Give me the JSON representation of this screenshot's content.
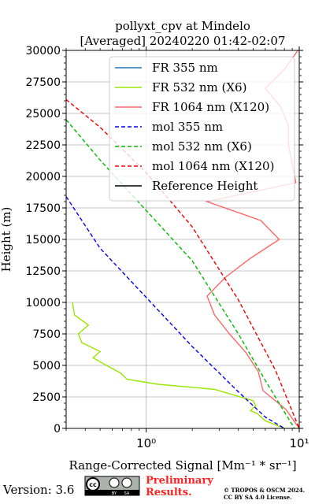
{
  "chart_data": {
    "type": "line",
    "title_line1": "pollyxt_cpv at Mindelo",
    "title_line2": "[Averaged] 20240220 01:42-02:07",
    "xlabel": "Range-Corrected Signal [Mm⁻¹ * sr⁻¹]",
    "ylabel": "Height (m)",
    "x_scale": "log",
    "xlim": [
      0.3,
      10
    ],
    "ylim": [
      0,
      30000
    ],
    "x_ticks": [
      {
        "value": 1,
        "label": "10⁰"
      },
      {
        "value": 10,
        "label": "10¹"
      }
    ],
    "y_ticks": [
      0,
      2500,
      5000,
      7500,
      10000,
      12500,
      15000,
      17500,
      20000,
      22500,
      25000,
      27500,
      30000
    ],
    "grid": true,
    "legend_position": "top-right",
    "legend": [
      {
        "label": "FR 355 nm",
        "color": "#1f77b4",
        "style": "solid"
      },
      {
        "label": "FR 532 nm (X6)",
        "color": "#99e600",
        "style": "solid"
      },
      {
        "label": "FR 1064 nm (X120)",
        "color": "#ff6666",
        "style": "solid"
      },
      {
        "label": "mol 355 nm",
        "color": "#0000ee",
        "style": "dashed"
      },
      {
        "label": "mol 532 nm (X6)",
        "color": "#00bb00",
        "style": "dashed"
      },
      {
        "label": "mol 1064 nm (X120)",
        "color": "#ee0000",
        "style": "dashed"
      },
      {
        "label": "Reference Height",
        "color": "#000000",
        "style": "solid"
      }
    ],
    "series": [
      {
        "name": "mol 355 nm",
        "color": "#0000ee",
        "dashed": true,
        "points": [
          [
            0.3,
            18400
          ],
          [
            0.5,
            14300
          ],
          [
            1.0,
            10400
          ],
          [
            2.0,
            6500
          ],
          [
            4.0,
            2900
          ],
          [
            6.0,
            900
          ],
          [
            8.0,
            0
          ]
        ]
      },
      {
        "name": "mol 532 nm (X6)",
        "color": "#00bb00",
        "dashed": true,
        "points": [
          [
            0.3,
            24500
          ],
          [
            0.5,
            21300
          ],
          [
            1.0,
            17300
          ],
          [
            2.0,
            13300
          ],
          [
            4.0,
            7500
          ],
          [
            6.0,
            3800
          ],
          [
            9.3,
            0
          ]
        ]
      },
      {
        "name": "mol 1064 nm (X120)",
        "color": "#ee0000",
        "dashed": true,
        "points": [
          [
            0.3,
            26100
          ],
          [
            0.5,
            23900
          ],
          [
            1.0,
            20300
          ],
          [
            2.0,
            16000
          ],
          [
            4.0,
            10200
          ],
          [
            7.0,
            4600
          ],
          [
            10.0,
            0
          ]
        ]
      },
      {
        "name": "FR 532 nm (X6)",
        "color": "#99e600",
        "dashed": false,
        "points": [
          [
            8.0,
            0
          ],
          [
            6.0,
            600
          ],
          [
            5.3,
            1200
          ],
          [
            4.8,
            1400
          ],
          [
            5.2,
            1800
          ],
          [
            5.0,
            2200
          ],
          [
            2.8,
            3100
          ],
          [
            1.2,
            3500
          ],
          [
            0.75,
            3900
          ],
          [
            0.68,
            4400
          ],
          [
            0.55,
            5000
          ],
          [
            0.45,
            5600
          ],
          [
            0.5,
            6100
          ],
          [
            0.38,
            6800
          ],
          [
            0.36,
            7500
          ],
          [
            0.42,
            8200
          ],
          [
            0.34,
            9000
          ],
          [
            0.33,
            10000
          ]
        ]
      },
      {
        "name": "FR 1064 nm (X120)",
        "color": "#ff6666",
        "dashed": false,
        "points": [
          [
            10.0,
            0
          ],
          [
            8.2,
            1500
          ],
          [
            5.8,
            3000
          ],
          [
            5.4,
            4500
          ],
          [
            4.5,
            6000
          ],
          [
            3.5,
            7500
          ],
          [
            2.8,
            9000
          ],
          [
            2.5,
            10500
          ],
          [
            3.3,
            12000
          ],
          [
            4.8,
            13500
          ],
          [
            7.4,
            15000
          ],
          [
            5.6,
            16500
          ],
          [
            2.5,
            18000
          ],
          [
            9.5,
            19500
          ],
          [
            9.0,
            21000
          ],
          [
            8.5,
            22500
          ],
          [
            8.5,
            24000
          ],
          [
            7.6,
            25500
          ],
          [
            6.0,
            27000
          ],
          [
            8.0,
            28500
          ],
          [
            9.8,
            30000
          ]
        ]
      }
    ]
  },
  "footer": {
    "version": "Version: 3.6",
    "cc_badge": [
      "cc",
      "BY",
      "SA"
    ],
    "preliminary_line1": "Preliminary",
    "preliminary_line2": "Results.",
    "copyright_line1": "© TROPOS & OSCM 2024.",
    "copyright_line2": "CC BY SA 4.0 License."
  }
}
